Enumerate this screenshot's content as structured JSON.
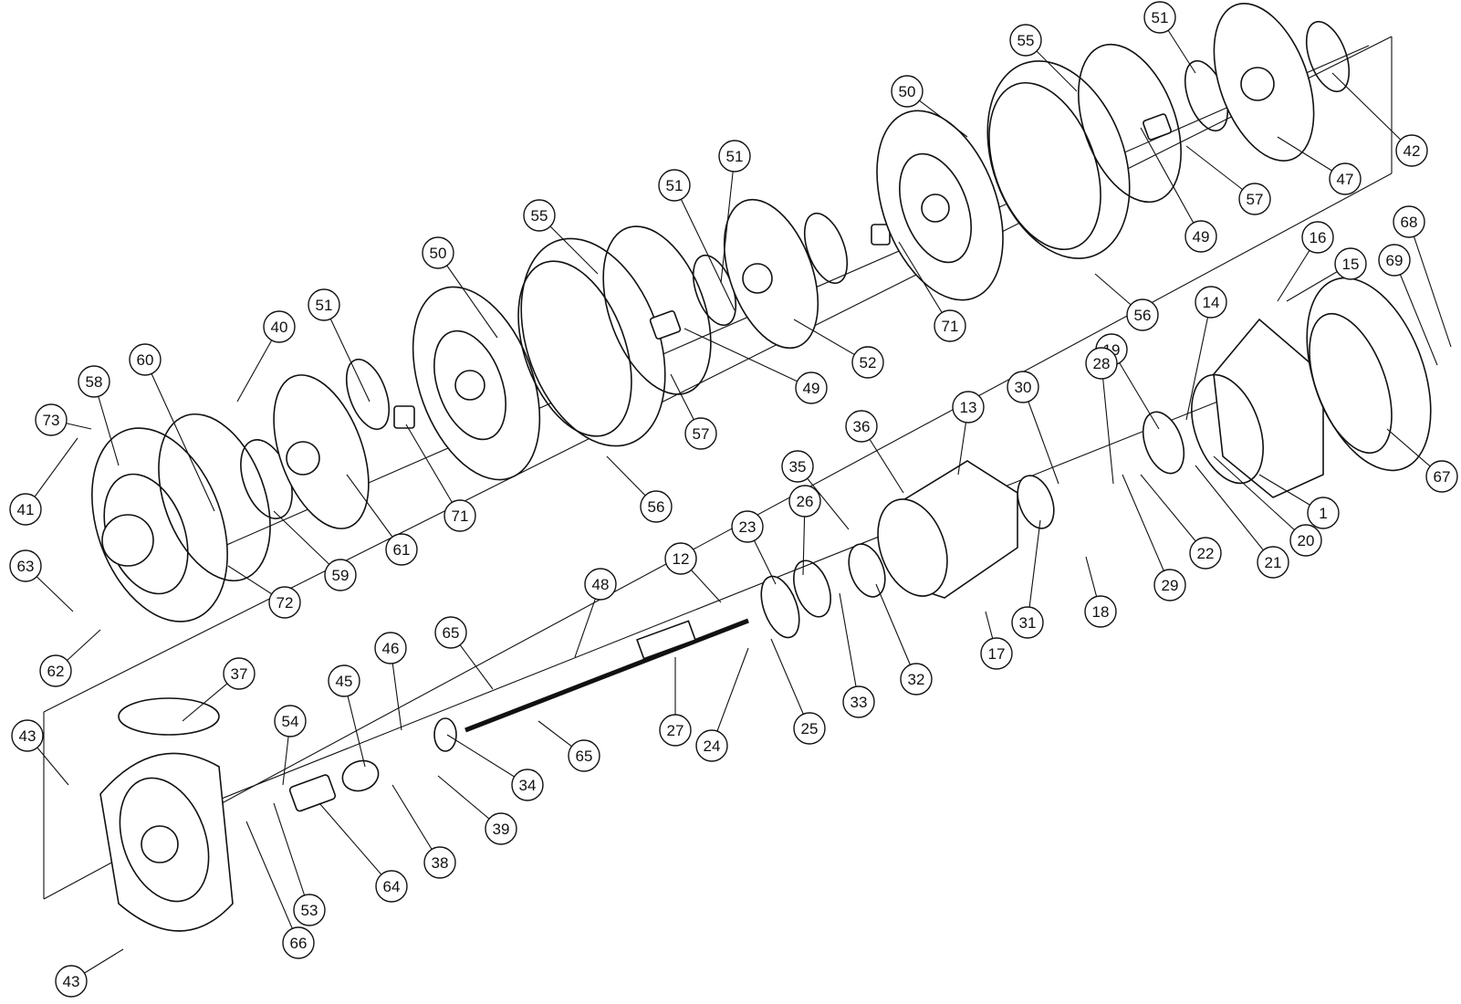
{
  "colors": {
    "line": "#111111",
    "background": "#ffffff"
  },
  "callouts": [
    "1",
    "12",
    "13",
    "14",
    "15",
    "16",
    "17",
    "18",
    "19",
    "20",
    "21",
    "22",
    "23",
    "24",
    "25",
    "26",
    "27",
    "28",
    "29",
    "30",
    "31",
    "32",
    "33",
    "34",
    "35",
    "36",
    "37",
    "38",
    "39",
    "40",
    "41",
    "42",
    "43",
    "45",
    "46",
    "47",
    "48",
    "49",
    "50",
    "51",
    "52",
    "53",
    "54",
    "55",
    "56",
    "57",
    "58",
    "59",
    "60",
    "61",
    "62",
    "63",
    "64",
    "65",
    "66",
    "67",
    "68",
    "69",
    "71",
    "72",
    "73"
  ]
}
